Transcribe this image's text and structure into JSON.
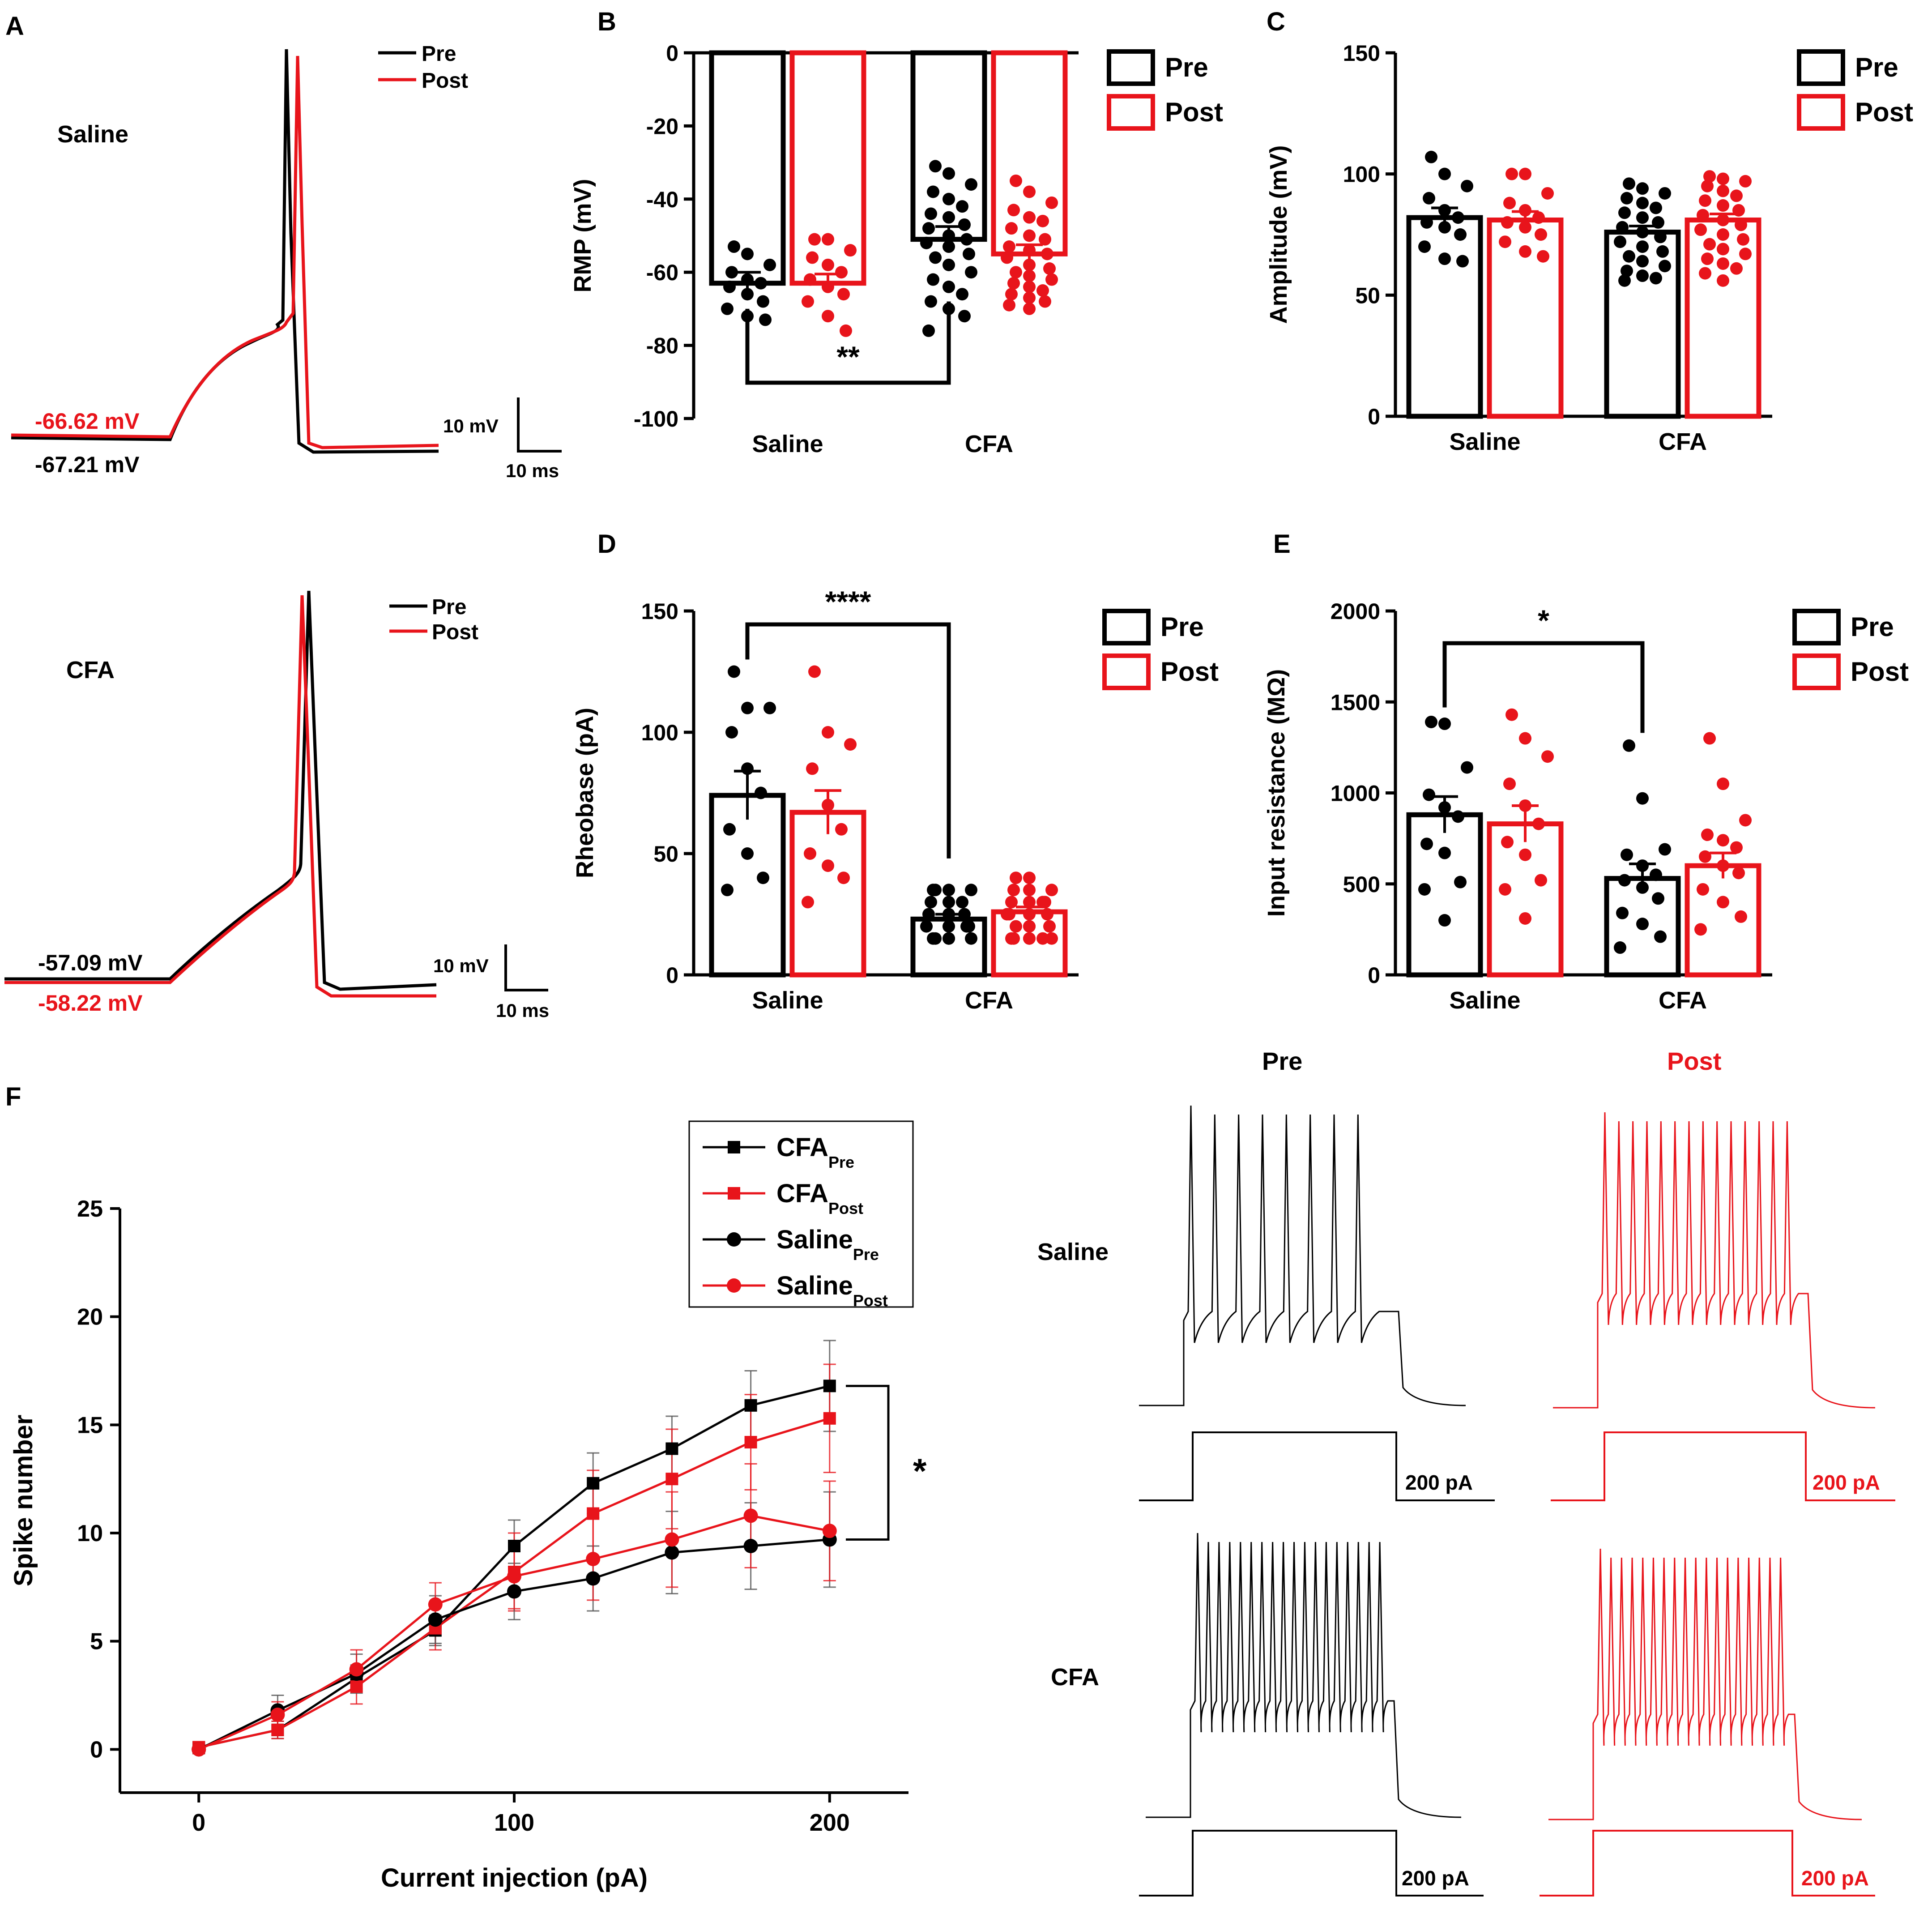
{
  "colors": {
    "pre": "#000000",
    "post": "#E8141B"
  },
  "legend": {
    "pre": "Pre",
    "post": "Post"
  },
  "panelA": {
    "letter": "A",
    "saline": {
      "label": "Saline",
      "pre_rmp": "-67.21 mV",
      "post_rmp": "-66.62 mV"
    },
    "cfa": {
      "label": "CFA",
      "pre_rmp": "-57.09 mV",
      "post_rmp": "-58.22 mV"
    },
    "scale": {
      "v": "10 mV",
      "t": "10 ms"
    }
  },
  "panelF_traces": {
    "pre_title": "Pre",
    "post_title": "Post",
    "saline_label": "Saline",
    "cfa_label": "CFA",
    "step_label": "200 pA"
  },
  "chart_data": [
    {
      "id": "B",
      "letter": "B",
      "type": "bar",
      "ylabel": "RMP (mV)",
      "ylim": [
        -100,
        0
      ],
      "yticks": [
        0,
        -20,
        -40,
        -60,
        -80,
        -100
      ],
      "categories": [
        "Saline",
        "CFA"
      ],
      "series": [
        {
          "name": "Pre",
          "values": [
            -63,
            -51
          ],
          "sem": [
            3,
            3.5
          ],
          "points": [
            [
              -53,
              -55,
              -58,
              -60,
              -62,
              -63,
              -64,
              -66,
              -68,
              -70,
              -72,
              -73
            ],
            [
              -31,
              -33,
              -36,
              -38,
              -40,
              -42,
              -44,
              -45,
              -47,
              -48,
              -50,
              -51,
              -52,
              -53,
              -55,
              -56,
              -58,
              -60,
              -62,
              -64,
              -66,
              -68,
              -70,
              -72,
              -76
            ]
          ]
        },
        {
          "name": "Post",
          "values": [
            -63,
            -55
          ],
          "sem": [
            2.5,
            2.5
          ],
          "points": [
            [
              -51,
              -51,
              -54,
              -56,
              -58,
              -60,
              -62,
              -64,
              -66,
              -68,
              -72,
              -76
            ],
            [
              -35,
              -38,
              -41,
              -43,
              -45,
              -46,
              -48,
              -50,
              -51,
              -53,
              -54,
              -55,
              -56,
              -58,
              -59,
              -60,
              -61,
              -62,
              -63,
              -64,
              -65,
              -66,
              -67,
              -68,
              -69,
              -70
            ]
          ]
        }
      ],
      "significance": {
        "label": "**",
        "between": [
          "Saline",
          "CFA"
        ]
      }
    },
    {
      "id": "C",
      "letter": "C",
      "type": "bar",
      "ylabel": "Amplitude (mV)",
      "ylim": [
        0,
        150
      ],
      "yticks": [
        0,
        50,
        100,
        150
      ],
      "categories": [
        "Saline",
        "CFA"
      ],
      "series": [
        {
          "name": "Pre",
          "values": [
            82,
            76
          ],
          "sem": [
            4,
            2.5
          ],
          "points": [
            [
              107,
              100,
              95,
              90,
              85,
              82,
              80,
              78,
              75,
              70,
              65,
              64
            ],
            [
              96,
              94,
              92,
              90,
              88,
              86,
              84,
              82,
              80,
              78,
              76,
              74,
              72,
              70,
              68,
              66,
              64,
              62,
              60,
              58,
              57,
              56
            ]
          ]
        },
        {
          "name": "Post",
          "values": [
            81,
            81
          ],
          "sem": [
            3.5,
            2.5
          ],
          "points": [
            [
              100,
              100,
              92,
              88,
              85,
              82,
              80,
              78,
              75,
              72,
              68,
              66
            ],
            [
              99,
              98,
              97,
              95,
              93,
              91,
              89,
              87,
              85,
              83,
              81,
              79,
              77,
              75,
              73,
              71,
              69,
              67,
              65,
              63,
              61,
              59,
              56
            ]
          ]
        }
      ]
    },
    {
      "id": "D",
      "letter": "D",
      "type": "bar",
      "ylabel": "Rheobase (pA)",
      "ylim": [
        0,
        150
      ],
      "yticks": [
        0,
        50,
        100,
        150
      ],
      "categories": [
        "Saline",
        "CFA"
      ],
      "series": [
        {
          "name": "Pre",
          "values": [
            74,
            23
          ],
          "sem": [
            10,
            2
          ],
          "points": [
            [
              125,
              110,
              110,
              100,
              85,
              75,
              60,
              50,
              40,
              35
            ],
            [
              35,
              35,
              35,
              35,
              30,
              30,
              30,
              25,
              25,
              25,
              25,
              20,
              20,
              20,
              20,
              15,
              15,
              15,
              15,
              15
            ]
          ]
        },
        {
          "name": "Post",
          "values": [
            67,
            26
          ],
          "sem": [
            9,
            2
          ],
          "points": [
            [
              125,
              100,
              95,
              85,
              70,
              60,
              50,
              45,
              40,
              30
            ],
            [
              40,
              40,
              35,
              35,
              35,
              30,
              30,
              30,
              30,
              25,
              25,
              25,
              25,
              20,
              20,
              20,
              20,
              15,
              15,
              15,
              15,
              15,
              15
            ]
          ]
        }
      ],
      "significance": {
        "label": "****",
        "between": [
          "Saline",
          "CFA"
        ]
      }
    },
    {
      "id": "E",
      "letter": "E",
      "type": "bar",
      "ylabel": "Input resistance (MΩ)",
      "ylim": [
        0,
        2000
      ],
      "yticks": [
        0,
        500,
        1000,
        1500,
        2000
      ],
      "categories": [
        "Saline",
        "CFA"
      ],
      "series": [
        {
          "name": "Pre",
          "values": [
            880,
            530
          ],
          "sem": [
            100,
            80
          ],
          "points": [
            [
              1390,
              1380,
              1140,
              990,
              920,
              870,
              720,
              670,
              510,
              470,
              300
            ],
            [
              1260,
              970,
              690,
              660,
              600,
              550,
              520,
              480,
              420,
              340,
              280,
              210,
              150
            ]
          ]
        },
        {
          "name": "Post",
          "values": [
            830,
            600
          ],
          "sem": [
            100,
            70
          ],
          "points": [
            [
              1430,
              1300,
              1200,
              1050,
              930,
              830,
              730,
              660,
              520,
              470,
              310
            ],
            [
              1300,
              1050,
              850,
              770,
              740,
              700,
              650,
              600,
              560,
              470,
              400,
              320,
              250
            ]
          ]
        }
      ],
      "significance": {
        "label": "*",
        "between": [
          "Saline",
          "CFA"
        ]
      }
    },
    {
      "id": "F",
      "letter": "F",
      "type": "line",
      "xlabel": "Current injection (pA)",
      "ylabel": "Spike number",
      "xlim": [
        -25,
        225
      ],
      "ylim": [
        -2,
        25
      ],
      "xticks": [
        0,
        100,
        200
      ],
      "yticks": [
        0,
        5,
        10,
        15,
        20,
        25
      ],
      "x": [
        0,
        25,
        50,
        75,
        100,
        125,
        150,
        175,
        200
      ],
      "series": [
        {
          "name": "CFA",
          "sub": "Pre",
          "marker": "square",
          "color": "#000000",
          "values": [
            0.1,
            0.9,
            3.3,
            5.5,
            9.4,
            12.3,
            13.9,
            15.9,
            16.8
          ],
          "err": [
            0.2,
            0.4,
            0.6,
            0.7,
            1.2,
            1.4,
            1.5,
            1.6,
            2.1
          ]
        },
        {
          "name": "CFA",
          "sub": "Post",
          "marker": "square",
          "color": "#E8141B",
          "values": [
            0.1,
            0.9,
            2.9,
            5.6,
            8.2,
            10.9,
            12.5,
            14.2,
            15.3
          ],
          "err": [
            0.2,
            0.4,
            0.8,
            1.0,
            1.8,
            2.0,
            2.3,
            2.2,
            2.5
          ]
        },
        {
          "name": "Saline",
          "sub": "Pre",
          "marker": "circle",
          "color": "#000000",
          "values": [
            0.0,
            1.8,
            3.5,
            6.0,
            7.3,
            7.9,
            9.1,
            9.4,
            9.7
          ],
          "err": [
            0.2,
            0.7,
            0.9,
            1.1,
            1.3,
            1.5,
            1.9,
            2.0,
            2.2
          ]
        },
        {
          "name": "Saline",
          "sub": "Post",
          "marker": "circle",
          "color": "#E8141B",
          "values": [
            0.0,
            1.6,
            3.7,
            6.7,
            8.0,
            8.8,
            9.7,
            10.8,
            10.1
          ],
          "err": [
            0.2,
            0.6,
            0.9,
            1.0,
            1.5,
            1.9,
            2.2,
            2.4,
            2.3
          ]
        }
      ],
      "significance": {
        "label": "*"
      }
    }
  ]
}
